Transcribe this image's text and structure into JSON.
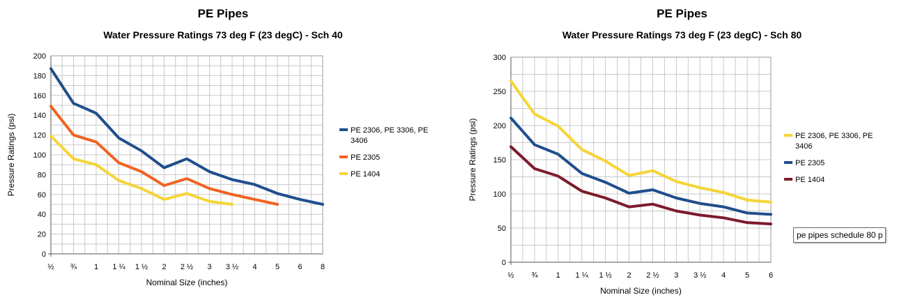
{
  "chart_data": [
    {
      "type": "line",
      "title": "PE Pipes",
      "subtitle": "Water Pressure Ratings 73 deg F (23 degC)  - Sch 40",
      "xlabel": "Nominal Size (inches)",
      "ylabel": "Pressure Ratings (psi)",
      "categories": [
        "½",
        "¾",
        "1",
        "1 ¼",
        "1 ½",
        "2",
        "2 ½",
        "3",
        "3 ½",
        "4",
        "5",
        "6",
        "8"
      ],
      "ylim": [
        0,
        200
      ],
      "yticks": [
        0,
        20,
        40,
        60,
        80,
        100,
        120,
        140,
        160,
        180,
        200
      ],
      "grid": true,
      "legend_position": "right",
      "series": [
        {
          "name": "PE 2306, PE 3306, PE 3406",
          "legend_lines": [
            "PE 2306, PE 3306, PE",
            "3406"
          ],
          "color": "#1f4e8c",
          "values": [
            187,
            152,
            142,
            117,
            104,
            87,
            96,
            83,
            75,
            70,
            61,
            55,
            50
          ]
        },
        {
          "name": "PE 2305",
          "legend_lines": [
            "PE 2305"
          ],
          "color": "#f26322",
          "values": [
            149,
            120,
            113,
            92,
            83,
            69,
            76,
            66,
            60,
            55,
            50,
            null,
            null
          ]
        },
        {
          "name": "PE 1404",
          "legend_lines": [
            "PE 1404"
          ],
          "color": "#f5d437",
          "values": [
            119,
            96,
            90,
            74,
            66,
            55,
            61,
            53,
            50,
            null,
            null,
            null,
            null
          ]
        }
      ]
    },
    {
      "type": "line",
      "title": "PE Pipes",
      "subtitle": "Water Pressure Ratings 73 deg F (23 degC)  - Sch 80",
      "xlabel": "Nominal Size (inches)",
      "ylabel": "Pressure Ratings (psi)",
      "categories": [
        "½",
        "¾",
        "1",
        "1 ¼",
        "1 ½",
        "2",
        "2 ½",
        "3",
        "3 ½",
        "4",
        "5",
        "6"
      ],
      "ylim": [
        0,
        300
      ],
      "yticks": [
        0,
        50,
        100,
        150,
        200,
        250,
        300
      ],
      "grid": true,
      "legend_position": "right",
      "series": [
        {
          "name": "PE 2306, PE 3306, PE 3406",
          "legend_lines": [
            "PE 2306, PE 3306, PE",
            "3406"
          ],
          "color": "#f5d437",
          "values": [
            265,
            217,
            199,
            165,
            148,
            127,
            134,
            118,
            109,
            102,
            91,
            88
          ]
        },
        {
          "name": "PE 2305",
          "legend_lines": [
            "PE 2305"
          ],
          "color": "#1f4e8c",
          "values": [
            211,
            172,
            158,
            130,
            117,
            101,
            106,
            94,
            86,
            81,
            72,
            70
          ]
        },
        {
          "name": "PE 1404",
          "legend_lines": [
            "PE 1404"
          ],
          "color": "#7b1b2c",
          "values": [
            169,
            137,
            126,
            104,
            94,
            81,
            85,
            75,
            69,
            65,
            58,
            56
          ]
        }
      ]
    }
  ],
  "tooltip": {
    "text": "pe pipes schedule 80 p"
  }
}
